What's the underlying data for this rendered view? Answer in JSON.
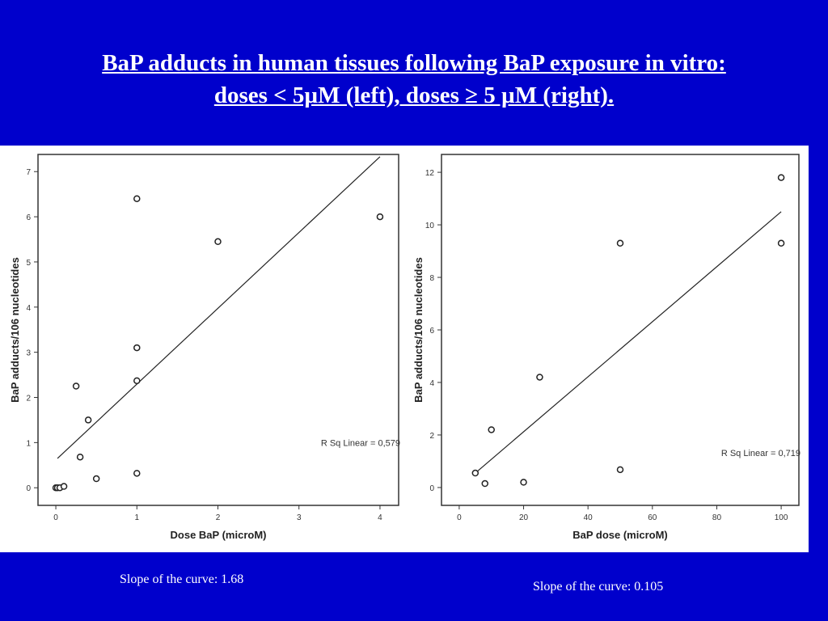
{
  "title": {
    "line1": " BaP adducts in human tissues following BaP exposure in vitro:",
    "line2": "doses < 5µM (left), doses ≥ 5 µM (right)."
  },
  "captions": {
    "left": "Slope of the curve: 1.68",
    "right": "Slope of the curve: 0.105"
  },
  "chart_data": [
    {
      "type": "scatter",
      "xlabel": "Dose BaP (microM)",
      "ylabel": "BaP adducts/106 nucleotides",
      "xlim": [
        -0.22,
        4.23
      ],
      "ylim": [
        -0.39,
        7.38
      ],
      "xticks": [
        0,
        1,
        2,
        3,
        4
      ],
      "yticks": [
        0,
        1,
        2,
        3,
        4,
        5,
        6,
        7
      ],
      "points": [
        [
          0,
          0
        ],
        [
          0.02,
          0
        ],
        [
          0.05,
          0
        ],
        [
          0.1,
          0.03
        ],
        [
          0.25,
          2.25
        ],
        [
          0.3,
          0.68
        ],
        [
          0.4,
          1.5
        ],
        [
          0.5,
          0.2
        ],
        [
          1,
          6.4
        ],
        [
          1,
          3.1
        ],
        [
          1,
          2.37
        ],
        [
          1,
          0.32
        ],
        [
          2,
          5.45
        ],
        [
          4,
          6.0
        ]
      ],
      "fit_line": [
        [
          0.02,
          0.65
        ],
        [
          4,
          7.33
        ]
      ],
      "annotation": "R Sq Linear = 0,579",
      "grid": false
    },
    {
      "type": "scatter",
      "xlabel": "BaP dose (microM)",
      "ylabel": "BaP adducts/106 nucleotides",
      "xlim": [
        -5.5,
        105.5
      ],
      "ylim": [
        -0.68,
        12.68
      ],
      "xticks": [
        0,
        20,
        40,
        60,
        80,
        100
      ],
      "yticks": [
        0,
        2,
        4,
        6,
        8,
        10,
        12
      ],
      "points": [
        [
          5,
          0.55
        ],
        [
          8,
          0.15
        ],
        [
          10,
          2.2
        ],
        [
          20,
          0.2
        ],
        [
          25,
          4.2
        ],
        [
          50,
          9.3
        ],
        [
          50,
          0.68
        ],
        [
          100,
          11.8
        ],
        [
          100,
          9.3
        ]
      ],
      "fit_line": [
        [
          5,
          0.55
        ],
        [
          100,
          10.5
        ]
      ],
      "annotation": "R Sq Linear = 0,719",
      "grid": false
    }
  ]
}
